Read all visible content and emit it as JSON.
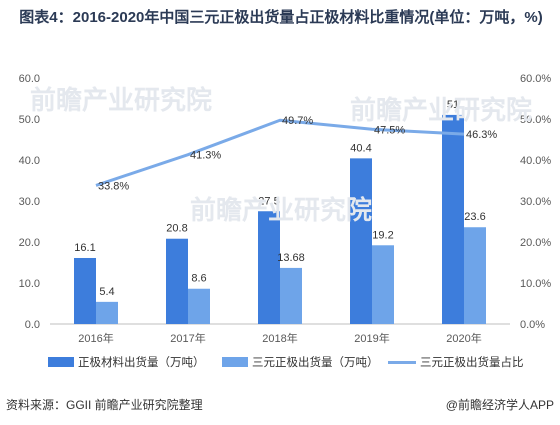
{
  "title": "图表4：2016-2020年中国三元正极出货量占正极材料比重情况(单位：万吨，%)",
  "source": "资料来源：GGII 前瞻产业研究院整理",
  "credit": "@前瞻经济学人APP",
  "watermark": "前瞻产业研究院",
  "colors": {
    "primary": "#3d7ddc",
    "secondary": "#6ea4e9",
    "line": "#7aaae8"
  },
  "chart_data": {
    "type": "bar",
    "categories": [
      "2016年",
      "2017年",
      "2018年",
      "2019年",
      "2020年"
    ],
    "series": [
      {
        "name": "正极材料出货量（万吨）",
        "values": [
          16.1,
          20.8,
          27.5,
          40.4,
          51
        ],
        "labels": [
          "16.1",
          "20.8",
          "27.5",
          "40.4",
          "51"
        ]
      },
      {
        "name": "三元正极出货量（万吨）",
        "values": [
          5.4,
          8.6,
          13.68,
          19.2,
          23.6
        ],
        "labels": [
          "5.4",
          "8.6",
          "13.68",
          "19.2",
          "23.6"
        ]
      },
      {
        "name": "三元正极出货量占比",
        "type": "line",
        "axis": "right",
        "values": [
          33.8,
          41.3,
          49.7,
          47.5,
          46.3
        ],
        "labels": [
          "33.8%",
          "41.3%",
          "49.7%",
          "47.5%",
          "46.3%"
        ]
      }
    ],
    "ylim": [
      0,
      60
    ],
    "y2lim": [
      0,
      60
    ],
    "yticks": [
      "0.0",
      "10.0",
      "20.0",
      "30.0",
      "40.0",
      "50.0",
      "60.0"
    ],
    "y2ticks": [
      "0.0%",
      "10.0%",
      "20.0%",
      "30.0%",
      "40.0%",
      "50.0%",
      "60.0%"
    ],
    "grid": false,
    "legend": "bottom"
  }
}
